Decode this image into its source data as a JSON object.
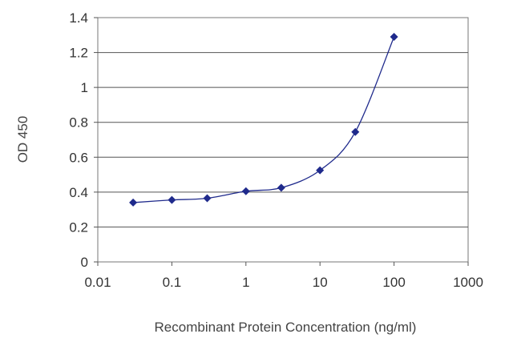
{
  "chart_data": {
    "type": "line",
    "title": "",
    "xlabel": "Recombinant Protein Concentration (ng/ml)",
    "ylabel": "OD 450",
    "x_scale": "log",
    "xlim": [
      0.01,
      1000
    ],
    "ylim": [
      0,
      1.4
    ],
    "x_ticks": [
      "0.01",
      "0.1",
      "1",
      "10",
      "100",
      "1000"
    ],
    "y_ticks": [
      "0",
      "0.2",
      "0.4",
      "0.6",
      "0.8",
      "1",
      "1.2",
      "1.4"
    ],
    "grid": "horizontal",
    "legend": "none",
    "series": [
      {
        "color": "#1f2a8c",
        "marker": "diamond",
        "x": [
          0.03,
          0.1,
          0.3,
          1,
          3,
          10,
          30,
          100
        ],
        "y": [
          0.34,
          0.355,
          0.365,
          0.405,
          0.425,
          0.525,
          0.745,
          1.29
        ]
      }
    ]
  }
}
